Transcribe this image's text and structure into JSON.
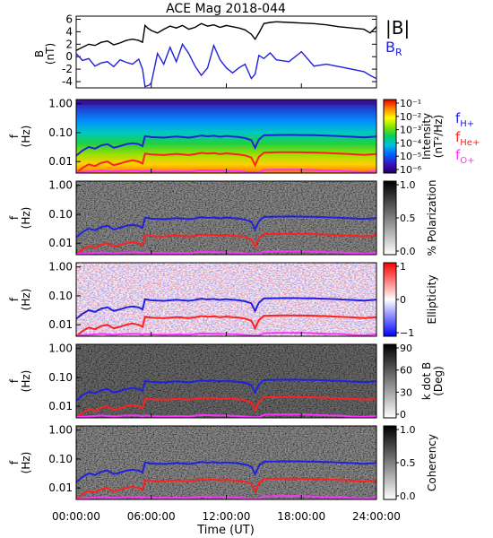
{
  "title": "ACE Mag 2018-044",
  "time_axis": {
    "label": "Time (UT)",
    "ticks": [
      "00:00:00",
      "06:00:00",
      "12:00:00",
      "18:00:00",
      "24:00:00"
    ],
    "tick_hours": [
      0,
      6,
      12,
      18,
      24
    ],
    "range_hours": [
      0,
      24
    ]
  },
  "legend_top": {
    "total": {
      "label": "|B|",
      "color": "#000000"
    },
    "radial": {
      "label": "B",
      "subscript": "R",
      "color": "#2020e0"
    }
  },
  "legend_freq": [
    {
      "label": "f",
      "subscript": "H+",
      "color": "#2020e0"
    },
    {
      "label": "f",
      "subscript": "He+",
      "color": "#ff2020"
    },
    {
      "label": "f",
      "subscript": "O+",
      "color": "#ff30ff"
    }
  ],
  "freq_axis": {
    "label_line1": "f",
    "label_line2": "(Hz)",
    "ticks": [
      "1.00",
      "0.10",
      "0.01"
    ],
    "tick_values": [
      1.0,
      0.1,
      0.01
    ],
    "log_range": [
      0.004,
      1.4
    ]
  },
  "panels": [
    {
      "name": "intensity",
      "colorbar": "rainbow",
      "cb_label_line1": "Intensity",
      "cb_label_line2": "(nT²/Hz)",
      "cb_ticks": [
        "10⁻¹",
        "10⁻²",
        "10⁻³",
        "10⁻⁴",
        "10⁻⁵",
        "10⁻⁶"
      ]
    },
    {
      "name": "polarization",
      "colorbar": "gray",
      "cb_label_line1": "% Polarization",
      "cb_label_line2": "",
      "cb_ticks": [
        "1.0",
        "0.5",
        "0.0"
      ]
    },
    {
      "name": "ellipticity",
      "colorbar": "bwr",
      "cb_label_line1": "Ellipticity",
      "cb_label_line2": "",
      "cb_ticks": [
        "1",
        "0",
        "−1"
      ]
    },
    {
      "name": "kdotb",
      "colorbar": "gray",
      "cb_label_line1": "k dot B",
      "cb_label_line2": "(Deg)",
      "cb_ticks": [
        "90",
        "60",
        "30",
        "0"
      ]
    },
    {
      "name": "coherency",
      "colorbar": "gray",
      "cb_label_line1": "Coherency",
      "cb_label_line2": "",
      "cb_ticks": [
        "1.0",
        "0.5",
        "0.0"
      ]
    }
  ],
  "colors": {
    "fH": "#2020e0",
    "fHe": "#ff2020",
    "fO": "#ff30ff",
    "B_total": "#000000",
    "B_r": "#2020e0"
  },
  "chart_data": [
    {
      "type": "line",
      "title": "ACE Mag 2018-044",
      "ylabel_line1": "B",
      "ylabel_line2": "(nT)",
      "yticks": [
        "6",
        "4",
        "2",
        "0",
        "-2",
        "-4"
      ],
      "ylim": [
        -5,
        6.5
      ],
      "xlim": [
        0,
        24
      ],
      "series": [
        {
          "name": "|B|",
          "x": [
            0,
            0.5,
            1,
            1.5,
            2,
            2.5,
            3,
            3.5,
            4,
            4.5,
            5,
            5.3,
            5.5,
            5.7,
            6,
            6.5,
            7,
            7.5,
            8,
            8.5,
            9,
            9.5,
            10,
            10.5,
            11,
            11.5,
            12,
            12.5,
            13,
            13.5,
            14,
            14.3,
            14.6,
            15,
            15.5,
            16,
            17,
            18,
            19,
            20,
            21,
            22,
            23,
            23.5,
            24
          ],
          "y": [
            1.0,
            1.5,
            2.0,
            1.8,
            2.3,
            2.5,
            1.9,
            2.2,
            2.6,
            2.8,
            2.6,
            2.3,
            5.0,
            4.6,
            4.2,
            3.8,
            4.4,
            4.9,
            4.6,
            5.0,
            4.4,
            4.7,
            5.3,
            4.9,
            5.1,
            4.7,
            5.0,
            4.8,
            4.6,
            4.3,
            3.6,
            2.8,
            3.8,
            5.3,
            5.5,
            5.6,
            5.5,
            5.4,
            5.3,
            5.1,
            4.8,
            4.6,
            4.4,
            3.8,
            4.8
          ]
        },
        {
          "name": "B",
          "subscript": "R",
          "x": [
            0,
            0.5,
            1,
            1.5,
            2,
            2.5,
            3,
            3.5,
            4,
            4.5,
            5,
            5.3,
            5.5,
            5.8,
            6,
            6.5,
            7,
            7.5,
            8,
            8.5,
            9,
            9.5,
            10,
            10.5,
            11,
            11.5,
            12,
            12.5,
            13,
            13.5,
            14,
            14.3,
            14.6,
            15,
            15.5,
            16,
            17,
            18,
            19,
            20,
            21,
            22,
            23,
            23.5,
            24
          ],
          "y": [
            0.5,
            -0.6,
            -0.3,
            -1.5,
            -1.0,
            -0.8,
            -1.6,
            -0.5,
            -0.9,
            -1.2,
            -0.4,
            -2.0,
            -4.8,
            -4.6,
            -4.2,
            0.5,
            -1.2,
            1.5,
            -0.8,
            2.0,
            0.5,
            -1.5,
            -3.0,
            -1.8,
            1.8,
            -0.5,
            -1.8,
            -2.6,
            -1.8,
            -1.2,
            -3.5,
            -2.8,
            0.2,
            -0.3,
            0.6,
            -0.5,
            -0.8,
            0.8,
            -1.5,
            -1.2,
            -1.6,
            -2.0,
            -2.4,
            -3.0,
            -3.5
          ]
        }
      ]
    },
    {
      "type": "heatmap",
      "name": "dynamic spectra with ion gyrofrequency traces",
      "x_unit": "hours UT",
      "y_unit": "Hz",
      "gyrofrequency_traces": [
        {
          "name": "f",
          "subscript": "H+",
          "x": [
            0,
            0.5,
            1,
            1.5,
            2,
            2.5,
            3,
            3.5,
            4,
            4.5,
            5,
            5.3,
            5.5,
            6,
            7,
            8,
            9,
            9.5,
            10,
            10.5,
            11,
            11.5,
            12,
            12.5,
            13,
            13.5,
            14,
            14.3,
            14.6,
            15,
            16,
            17,
            18,
            19,
            20,
            21,
            22,
            23,
            24
          ],
          "y": [
            0.016,
            0.024,
            0.032,
            0.028,
            0.036,
            0.04,
            0.03,
            0.034,
            0.04,
            0.043,
            0.04,
            0.034,
            0.076,
            0.07,
            0.067,
            0.074,
            0.067,
            0.072,
            0.08,
            0.075,
            0.078,
            0.072,
            0.077,
            0.073,
            0.07,
            0.065,
            0.055,
            0.03,
            0.058,
            0.081,
            0.083,
            0.084,
            0.083,
            0.082,
            0.079,
            0.076,
            0.072,
            0.068,
            0.073
          ]
        },
        {
          "name": "f",
          "subscript": "He+",
          "x": [
            0,
            0.5,
            1,
            1.5,
            2,
            2.5,
            3,
            3.5,
            4,
            4.5,
            5,
            5.3,
            5.5,
            6,
            7,
            8,
            9,
            9.5,
            10,
            10.5,
            11,
            11.5,
            12,
            12.5,
            13,
            13.5,
            14,
            14.3,
            14.6,
            15,
            16,
            17,
            18,
            19,
            20,
            21,
            22,
            23,
            24
          ],
          "y": [
            0.004,
            0.006,
            0.008,
            0.007,
            0.009,
            0.01,
            0.0075,
            0.0085,
            0.01,
            0.011,
            0.01,
            0.0085,
            0.019,
            0.0175,
            0.0168,
            0.0185,
            0.0168,
            0.018,
            0.02,
            0.0188,
            0.0195,
            0.018,
            0.0193,
            0.0183,
            0.0175,
            0.0163,
            0.0138,
            0.0075,
            0.0145,
            0.0203,
            0.0208,
            0.021,
            0.0208,
            0.0205,
            0.0198,
            0.019,
            0.018,
            0.017,
            0.0183
          ]
        },
        {
          "name": "f",
          "subscript": "O+",
          "x": [
            0,
            1,
            2,
            3,
            4,
            5,
            5.3,
            5.5,
            6,
            7,
            8,
            9,
            10,
            11,
            12,
            13,
            14,
            14.3,
            14.6,
            15,
            16,
            17,
            18,
            19,
            20,
            21,
            22,
            23,
            24
          ],
          "y": [
            0.0042,
            0.0045,
            0.0048,
            0.0045,
            0.0048,
            0.0048,
            0.0045,
            0.0048,
            0.0046,
            0.0045,
            0.0046,
            0.0045,
            0.005,
            0.0049,
            0.0048,
            0.0046,
            0.0042,
            0.0042,
            0.0042,
            0.0051,
            0.0052,
            0.0052,
            0.0052,
            0.0051,
            0.0049,
            0.0048,
            0.0045,
            0.0043,
            0.0046
          ]
        }
      ]
    }
  ]
}
